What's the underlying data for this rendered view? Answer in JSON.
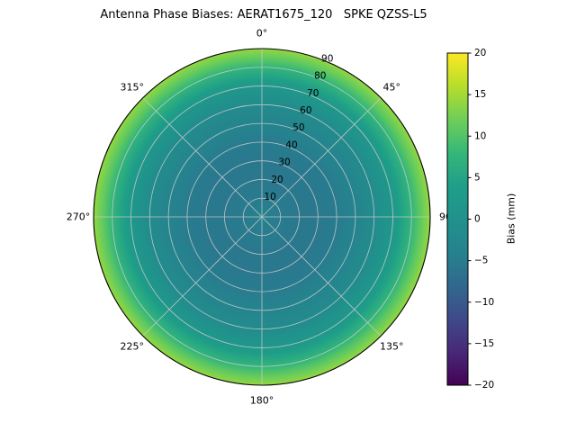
{
  "figure": {
    "background": "#ffffff"
  },
  "chart_data": {
    "type": "heatmap",
    "projection": "polar",
    "title": "Antenna Phase Biases: AERAT1675_120   SPKE QZSS-L5",
    "colormap": "viridis",
    "rmax": 90,
    "grid_on": true,
    "grid_color": "#cccccc",
    "spine_color": "#000000",
    "angular_tick_degrees": [
      0,
      45,
      90,
      135,
      180,
      225,
      270,
      315
    ],
    "angular_tick_labels": [
      "0°",
      "45°",
      "90",
      "135°",
      "180°",
      "225°",
      "270°",
      "315°"
    ],
    "radial_tick_values": [
      10,
      20,
      30,
      40,
      50,
      60,
      70,
      80,
      90
    ],
    "radial_tick_labels": [
      "10",
      "20",
      "30",
      "40",
      "50",
      "60",
      "70",
      "80",
      "90"
    ],
    "radial_label_azimuth_deg": 22.5,
    "colorbar": {
      "label": "Bias (mm)",
      "vmin": -20,
      "vmax": 20,
      "tick_values": [
        20,
        15,
        10,
        5,
        0,
        -5,
        -10,
        -15,
        -20
      ],
      "tick_labels": [
        "20",
        "15",
        "10",
        "5",
        "0",
        "−5",
        "−10",
        "−15",
        "−20"
      ]
    },
    "profile": {
      "description": "bias (mm) vs zenith angle (deg), azimuthally symmetric",
      "zenith_deg": [
        0,
        10,
        20,
        30,
        40,
        50,
        60,
        70,
        80,
        85,
        90
      ],
      "bias_mm": [
        -4,
        -5,
        -5.5,
        -5.5,
        -5,
        -3.5,
        -1.5,
        2,
        7.5,
        11,
        14
      ]
    }
  }
}
